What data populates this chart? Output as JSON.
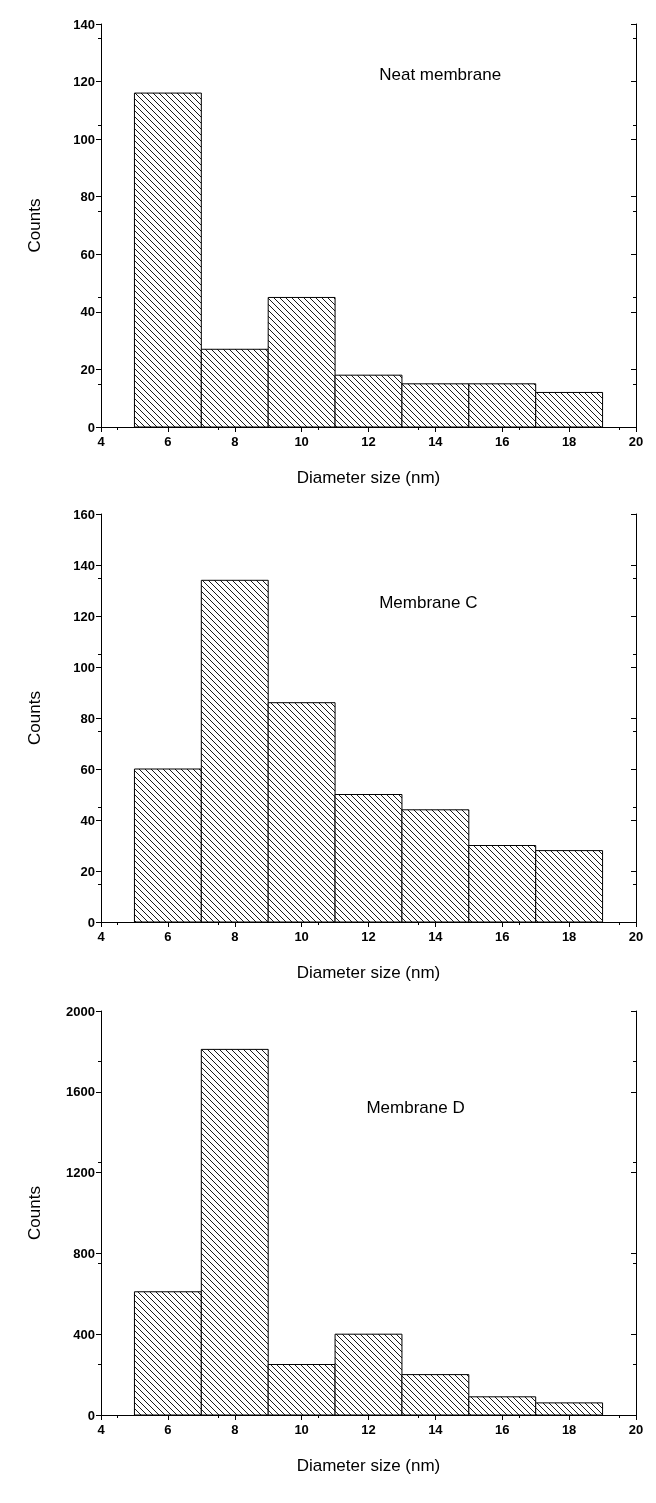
{
  "chart_data": [
    {
      "type": "histogram",
      "annotations": [
        "Neat membrane"
      ],
      "xlabel": "Diameter size (nm)",
      "ylabel": "Counts",
      "bins": [
        5,
        7,
        9,
        11,
        13,
        15,
        17,
        19
      ],
      "values": [
        116,
        27,
        45,
        18,
        15,
        15,
        12
      ],
      "color": "#000000",
      "xlim": [
        4,
        20
      ],
      "xticks": [
        4,
        6,
        8,
        10,
        12,
        14,
        16,
        18,
        20
      ],
      "ylim": [
        0,
        140
      ],
      "yticks": [
        0,
        20,
        40,
        60,
        80,
        100,
        120,
        140
      ],
      "grid": false
    },
    {
      "type": "histogram",
      "annotations": [
        "Membrane C"
      ],
      "xlabel": "Diameter size (nm)",
      "ylabel": "Counts",
      "bins": [
        5,
        7,
        9,
        11,
        13,
        15,
        17,
        19
      ],
      "values": [
        60,
        134,
        86,
        50,
        44,
        30,
        28
      ],
      "color": "#000000",
      "xlim": [
        4,
        20
      ],
      "xticks": [
        4,
        6,
        8,
        10,
        12,
        14,
        16,
        18,
        20
      ],
      "ylim": [
        0,
        160
      ],
      "yticks": [
        0,
        20,
        40,
        60,
        80,
        100,
        120,
        140,
        160
      ],
      "grid": false
    },
    {
      "type": "histogram",
      "annotations": [
        "Membrane D"
      ],
      "xlabel": "Diameter size (nm)",
      "ylabel": "Counts",
      "bins": [
        5,
        7,
        9,
        11,
        13,
        15,
        17,
        19
      ],
      "values": [
        610,
        1810,
        250,
        400,
        200,
        90,
        60
      ],
      "color": "#000000",
      "xlim": [
        4,
        20
      ],
      "xticks": [
        4,
        6,
        8,
        10,
        12,
        14,
        16,
        18,
        20
      ],
      "ylim": [
        0,
        2000
      ],
      "yticks": [
        0,
        400,
        800,
        1200,
        1600,
        2000
      ],
      "grid": false
    }
  ]
}
